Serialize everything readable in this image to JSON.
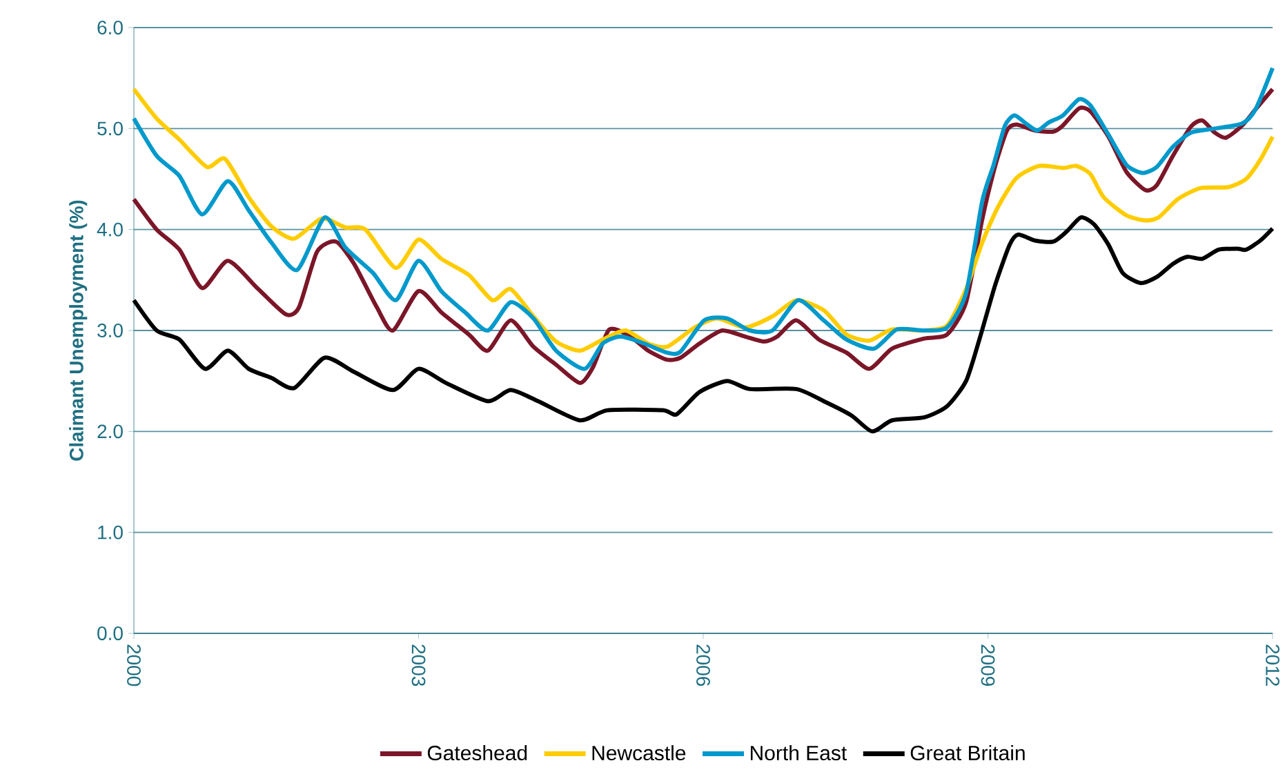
{
  "chart_data": {
    "type": "line",
    "ylabel": "Claimant Unemployment (%)",
    "xlim": [
      2000,
      2012
    ],
    "xticks": [
      2000,
      2003,
      2006,
      2009,
      2012
    ],
    "ylim": [
      0,
      6
    ],
    "yticks": [
      {
        "value": 0,
        "label": "0.0"
      },
      {
        "value": 1,
        "label": "1.0"
      },
      {
        "value": 2,
        "label": "2.0"
      },
      {
        "value": 3,
        "label": "3.0"
      },
      {
        "value": 4,
        "label": "4.0"
      },
      {
        "value": 5,
        "label": "5.0"
      },
      {
        "value": 6,
        "label": "6.0"
      }
    ],
    "grid": "y",
    "legend": "bottom",
    "marker": "none",
    "line_style": "solid",
    "series": [
      {
        "name": "Gateshead",
        "color": "#7b1628",
        "x": [
          2000.0,
          2000.24,
          2000.48,
          2000.72,
          2000.99,
          2001.3,
          2001.6,
          2001.74,
          2001.93,
          2002.13,
          2002.32,
          2002.56,
          2002.73,
          2003.0,
          2003.24,
          2003.53,
          2003.73,
          2003.97,
          2004.21,
          2004.45,
          2004.7,
          2004.84,
          2005.01,
          2005.23,
          2005.42,
          2005.62,
          2005.76,
          2005.96,
          2006.2,
          2006.44,
          2006.64,
          2006.78,
          2006.98,
          2007.22,
          2007.51,
          2007.75,
          2007.99,
          2008.33,
          2008.57,
          2008.77,
          2008.94,
          2009.08,
          2009.2,
          2009.3,
          2009.5,
          2009.69,
          2009.79,
          2009.96,
          2010.08,
          2010.27,
          2010.46,
          2010.66,
          2010.78,
          2010.95,
          2011.14,
          2011.26,
          2011.39,
          2011.51,
          2011.68,
          2011.82,
          2012.0
        ],
        "values": [
          4.3,
          4.0,
          3.8,
          3.42,
          3.69,
          3.42,
          3.16,
          3.23,
          3.78,
          3.88,
          3.66,
          3.23,
          3.0,
          3.39,
          3.18,
          2.96,
          2.8,
          3.1,
          2.84,
          2.66,
          2.48,
          2.64,
          3.01,
          2.94,
          2.8,
          2.71,
          2.73,
          2.87,
          3.0,
          2.94,
          2.89,
          2.94,
          3.1,
          2.91,
          2.78,
          2.62,
          2.82,
          2.92,
          2.96,
          3.28,
          4.1,
          4.64,
          4.98,
          5.04,
          4.98,
          4.97,
          5.03,
          5.2,
          5.17,
          4.92,
          4.57,
          4.39,
          4.44,
          4.73,
          5.02,
          5.08,
          4.96,
          4.91,
          5.03,
          5.19,
          5.39
        ]
      },
      {
        "name": "Newcastle",
        "color": "#ffcc00",
        "x": [
          2000.0,
          2000.24,
          2000.48,
          2000.77,
          2000.96,
          2001.21,
          2001.45,
          2001.69,
          2001.98,
          2002.23,
          2002.44,
          2002.76,
          2003.0,
          2003.24,
          2003.53,
          2003.78,
          2003.97,
          2004.21,
          2004.45,
          2004.7,
          2004.94,
          2005.18,
          2005.42,
          2005.62,
          2005.91,
          2006.15,
          2006.44,
          2006.73,
          2006.98,
          2007.27,
          2007.51,
          2007.75,
          2007.99,
          2008.33,
          2008.57,
          2008.77,
          2008.94,
          2009.11,
          2009.3,
          2009.54,
          2009.79,
          2009.93,
          2010.08,
          2010.22,
          2010.46,
          2010.66,
          2010.8,
          2011.0,
          2011.24,
          2011.53,
          2011.72,
          2011.87,
          2012.0
        ],
        "values": [
          5.39,
          5.1,
          4.89,
          4.62,
          4.7,
          4.32,
          4.03,
          3.91,
          4.11,
          4.02,
          4.0,
          3.62,
          3.9,
          3.71,
          3.55,
          3.3,
          3.41,
          3.14,
          2.89,
          2.8,
          2.91,
          3.0,
          2.87,
          2.84,
          3.03,
          3.12,
          3.03,
          3.14,
          3.3,
          3.2,
          2.96,
          2.9,
          3.01,
          3.0,
          3.05,
          3.41,
          3.87,
          4.23,
          4.51,
          4.63,
          4.61,
          4.63,
          4.55,
          4.32,
          4.14,
          4.09,
          4.12,
          4.3,
          4.41,
          4.42,
          4.5,
          4.69,
          4.92
        ]
      },
      {
        "name": "North East",
        "color": "#0099cc",
        "x": [
          2000.0,
          2000.24,
          2000.48,
          2000.72,
          2000.99,
          2001.21,
          2001.45,
          2001.72,
          2002.01,
          2002.23,
          2002.52,
          2002.76,
          2003.0,
          2003.24,
          2003.49,
          2003.73,
          2003.97,
          2004.21,
          2004.45,
          2004.75,
          2004.94,
          2005.13,
          2005.38,
          2005.62,
          2005.76,
          2006.01,
          2006.25,
          2006.49,
          2006.73,
          2007.0,
          2007.27,
          2007.51,
          2007.8,
          2008.04,
          2008.33,
          2008.57,
          2008.77,
          2008.94,
          2009.06,
          2009.18,
          2009.28,
          2009.4,
          2009.52,
          2009.64,
          2009.79,
          2009.96,
          2010.08,
          2010.27,
          2010.46,
          2010.63,
          2010.78,
          2010.95,
          2011.14,
          2011.39,
          2011.68,
          2011.82,
          2012.0
        ],
        "values": [
          5.1,
          4.73,
          4.53,
          4.15,
          4.48,
          4.19,
          3.87,
          3.6,
          4.12,
          3.82,
          3.57,
          3.3,
          3.69,
          3.39,
          3.18,
          3.0,
          3.28,
          3.12,
          2.8,
          2.62,
          2.87,
          2.94,
          2.87,
          2.78,
          2.79,
          3.1,
          3.12,
          3.0,
          3.0,
          3.3,
          3.1,
          2.91,
          2.82,
          3.01,
          3.0,
          3.03,
          3.37,
          4.28,
          4.64,
          5.03,
          5.13,
          5.05,
          4.98,
          5.06,
          5.13,
          5.29,
          5.23,
          4.94,
          4.64,
          4.56,
          4.62,
          4.82,
          4.96,
          5.0,
          5.05,
          5.19,
          5.6
        ]
      },
      {
        "name": "Great Britain",
        "color": "#000000",
        "x": [
          2000.0,
          2000.24,
          2000.48,
          2000.75,
          2000.99,
          2001.21,
          2001.45,
          2001.69,
          2002.01,
          2002.32,
          2002.73,
          2003.0,
          2003.29,
          2003.73,
          2003.97,
          2004.26,
          2004.7,
          2004.99,
          2005.57,
          2005.72,
          2005.96,
          2006.25,
          2006.49,
          2006.98,
          2007.27,
          2007.56,
          2007.78,
          2007.99,
          2008.33,
          2008.57,
          2008.77,
          2008.91,
          2009.08,
          2009.23,
          2009.32,
          2009.5,
          2009.69,
          2009.83,
          2009.98,
          2010.12,
          2010.27,
          2010.42,
          2010.61,
          2010.78,
          2010.95,
          2011.1,
          2011.26,
          2011.43,
          2011.63,
          2011.72,
          2011.87,
          2012.0
        ],
        "values": [
          3.3,
          3.0,
          2.91,
          2.62,
          2.8,
          2.62,
          2.53,
          2.43,
          2.73,
          2.59,
          2.41,
          2.62,
          2.48,
          2.3,
          2.41,
          2.3,
          2.11,
          2.21,
          2.21,
          2.17,
          2.39,
          2.5,
          2.42,
          2.42,
          2.3,
          2.16,
          2.0,
          2.11,
          2.14,
          2.25,
          2.5,
          2.91,
          3.46,
          3.85,
          3.95,
          3.89,
          3.88,
          3.98,
          4.12,
          4.05,
          3.85,
          3.57,
          3.47,
          3.53,
          3.66,
          3.73,
          3.71,
          3.8,
          3.81,
          3.8,
          3.89,
          4.01
        ]
      }
    ]
  }
}
